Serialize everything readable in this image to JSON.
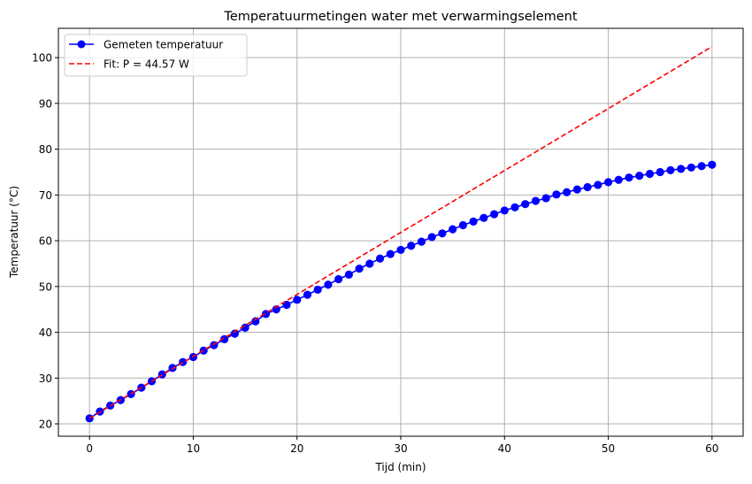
{
  "chart_data": {
    "type": "line",
    "title": "Temperatuurmetingen water met verwarmingselement",
    "xlabel": "Tijd (min)",
    "ylabel": "Temperatuur (°C)",
    "xlim": [
      -3,
      63
    ],
    "ylim": [
      17.3,
      106.4
    ],
    "xticks": [
      0,
      10,
      20,
      30,
      40,
      50,
      60
    ],
    "yticks": [
      20,
      30,
      40,
      50,
      60,
      70,
      80,
      90,
      100
    ],
    "grid": true,
    "legend_position": "upper left",
    "series": [
      {
        "name": "Gemeten temperatuur",
        "style": "line-with-circle-markers",
        "color": "#0000ff",
        "x": [
          0,
          1,
          2,
          3,
          4,
          5,
          6,
          7,
          8,
          9,
          10,
          11,
          12,
          13,
          14,
          15,
          16,
          17,
          18,
          19,
          20,
          21,
          22,
          23,
          24,
          25,
          26,
          27,
          28,
          29,
          30,
          31,
          32,
          33,
          34,
          35,
          36,
          37,
          38,
          39,
          40,
          41,
          42,
          43,
          44,
          45,
          46,
          47,
          48,
          49,
          50,
          51,
          52,
          53,
          54,
          55,
          56,
          57,
          58,
          59,
          60
        ],
        "values": [
          21.2,
          22.7,
          24.0,
          25.2,
          26.5,
          27.9,
          29.3,
          30.8,
          32.2,
          33.5,
          34.6,
          36.0,
          37.2,
          38.5,
          39.7,
          41.0,
          42.4,
          44.0,
          45.0,
          46.0,
          47.1,
          48.2,
          49.3,
          50.4,
          51.6,
          52.6,
          53.9,
          55.0,
          56.1,
          57.1,
          58.0,
          58.9,
          59.8,
          60.8,
          61.6,
          62.5,
          63.4,
          64.2,
          65.0,
          65.8,
          66.6,
          67.3,
          68.0,
          68.7,
          69.3,
          70.1,
          70.6,
          71.2,
          71.7,
          72.2,
          72.8,
          73.3,
          73.8,
          74.2,
          74.6,
          75.0,
          75.4,
          75.7,
          76.0,
          76.3,
          76.6
        ]
      },
      {
        "name": "Fit: P = 44.57 W",
        "style": "dashed-line",
        "color": "#ff0000",
        "x": [
          0,
          60
        ],
        "values": [
          21.2,
          102.4
        ]
      }
    ]
  }
}
